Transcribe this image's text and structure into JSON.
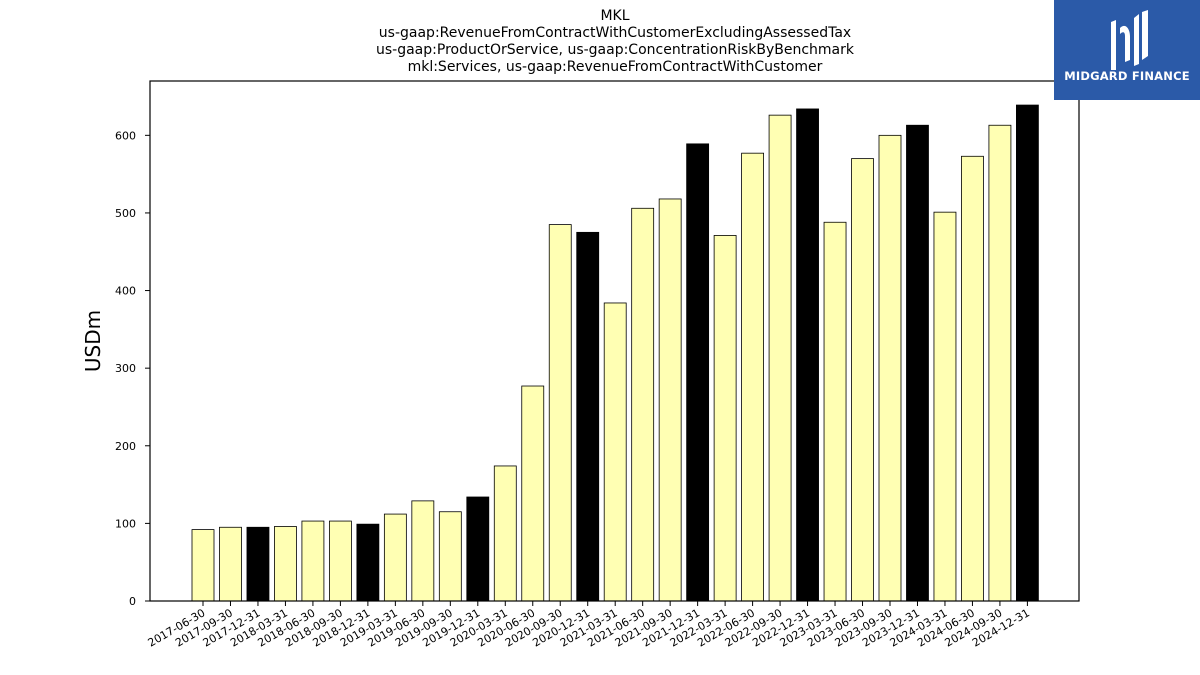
{
  "chart_data": {
    "type": "bar",
    "title_lines": [
      "MKL",
      "us-gaap:RevenueFromContractWithCustomerExcludingAssessedTax",
      "us-gaap:ProductOrService, us-gaap:ConcentrationRiskByBenchmark",
      "mkl:Services, us-gaap:RevenueFromContractWithCustomer"
    ],
    "xlabel": "",
    "ylabel": "USDm",
    "ylim": [
      0,
      670
    ],
    "yticks": [
      0,
      100,
      200,
      300,
      400,
      500,
      600
    ],
    "grid": false,
    "categories": [
      "2017-06-30",
      "2017-09-30",
      "2017-12-31",
      "2018-03-31",
      "2018-06-30",
      "2018-09-30",
      "2018-12-31",
      "2019-03-31",
      "2019-06-30",
      "2019-09-30",
      "2019-12-31",
      "2020-03-31",
      "2020-06-30",
      "2020-09-30",
      "2020-12-31",
      "2021-03-31",
      "2021-06-30",
      "2021-09-30",
      "2021-12-31",
      "2022-03-31",
      "2022-06-30",
      "2022-09-30",
      "2022-12-31",
      "2023-03-31",
      "2023-06-30",
      "2023-09-30",
      "2023-12-31",
      "2024-03-31",
      "2024-06-30",
      "2024-09-30",
      "2024-12-31"
    ],
    "values": [
      92,
      95,
      95,
      96,
      103,
      103,
      99,
      112,
      129,
      115,
      134,
      174,
      277,
      485,
      475,
      384,
      506,
      518,
      589,
      471,
      577,
      626,
      634,
      488,
      570,
      600,
      613,
      501,
      573,
      613,
      639
    ],
    "bar_colors": {
      "quarter": "#ffffb3",
      "year_end": "#000000",
      "edge": "#000000"
    }
  },
  "logo": {
    "text": "MIDGARD FINANCE",
    "background": "#2b5aa8",
    "foreground": "#ffffff"
  }
}
